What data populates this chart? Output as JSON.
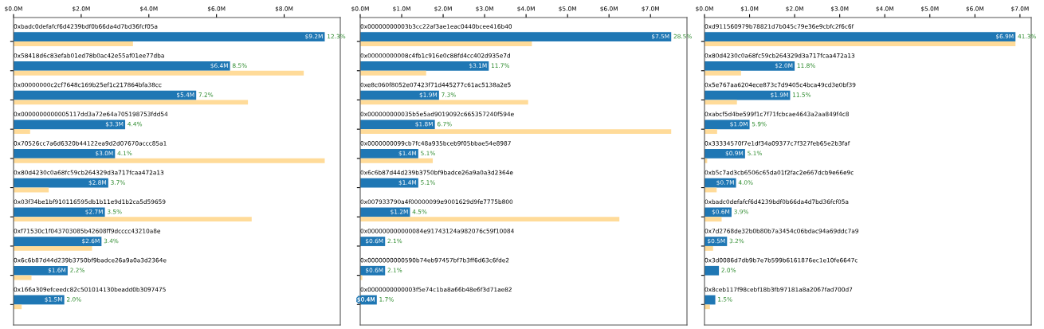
{
  "chart_data": [
    {
      "type": "bar",
      "orientation": "horizontal",
      "categories": [
        "0xbadc0defafcf6d4239bdf0b66da4d7bd36fcf05a",
        "0x58418d6c83efab01ed78b0ac42e55af01ee77dba",
        "0x00000000c2cf7648c169b25ef1c217864bfa38cc",
        "0x0000000000005117dd3a72e64a705198753fdd54",
        "0x70526cc7a6d6320b44122ea9d2d07670accc85a1",
        "0x80d4230c0a68fc59cb264329d3a717fcaa472a13",
        "0x03f34be1bf910116595db1b11e9d1b2ca5d59659",
        "0xf71530c1f043703085b42608ff9dcccc43210a8e",
        "0x6c6b87d44d239b3750bf9badce26a9a0a3d2364e",
        "0x166a309efceedc82c501014130beadd0b3097475"
      ],
      "series": [
        {
          "color": "#1f77b4",
          "values": [
            9.2,
            6.4,
            5.4,
            3.3,
            3.0,
            2.8,
            2.7,
            2.6,
            1.6,
            1.5
          ],
          "value_labels": [
            "$9.2M",
            "$6.4M",
            "$5.4M",
            "$3.3M",
            "$3.0M",
            "$2.8M",
            "$2.7M",
            "$2.6M",
            "$1.6M",
            "$1.5M"
          ]
        },
        {
          "color": "#ffdb99",
          "values": [
            3.53,
            8.58,
            6.93,
            0.49,
            9.2,
            1.04,
            7.04,
            2.32,
            0.53,
            0.24
          ]
        }
      ],
      "xlim": [
        0,
        9.66
      ],
      "xticks": [
        {
          "value": 0,
          "label": "$0.0M"
        },
        {
          "value": 2,
          "label": "$2.0M"
        },
        {
          "value": 4,
          "label": "$4.0M"
        },
        {
          "value": 6,
          "label": "$6.0M"
        },
        {
          "value": 8,
          "label": "$8.0M"
        }
      ],
      "annotations": [
        {
          "text": "12.3%",
          "x": 9.2,
          "y": "0xbadc0defafcf6d4239bdf0b66da4d7bd36fcf05a"
        },
        {
          "text": "8.5%",
          "x": 6.4,
          "y": "0x58418d6c83efab01ed78b0ac42e55af01ee77dba"
        },
        {
          "text": "7.2%",
          "x": 5.4,
          "y": "0x00000000c2cf7648c169b25ef1c217864bfa38cc"
        },
        {
          "text": "4.4%",
          "x": 3.3,
          "y": "0x0000000000005117dd3a72e64a705198753fdd54"
        },
        {
          "text": "4.1%",
          "x": 3.0,
          "y": "0x70526cc7a6d6320b44122ea9d2d07670accc85a1"
        },
        {
          "text": "3.7%",
          "x": 2.8,
          "y": "0x80d4230c0a68fc59cb264329d3a717fcaa472a13"
        },
        {
          "text": "3.5%",
          "x": 2.7,
          "y": "0x03f34be1bf910116595db1b11e9d1b2ca5d59659"
        },
        {
          "text": "3.4%",
          "x": 2.6,
          "y": "0xf71530c1f043703085b42608ff9dcccc43210a8e"
        },
        {
          "text": "2.2%",
          "x": 1.6,
          "y": "0x6c6b87d44d239b3750bf9badce26a9a0a3d2364e"
        },
        {
          "text": "2.0%",
          "x": 1.5,
          "y": "0x166a309efceedc82c501014130beadd0b3097475"
        }
      ]
    },
    {
      "type": "bar",
      "orientation": "horizontal",
      "categories": [
        "0x00000000003b3cc22af3ae1eac0440bcee416b40",
        "0x00000000008c4fb1c916e0c88fd4cc402d935e7d",
        "0xe8c060f8052e07423f71d445277c61ac5138a2e5",
        "0x000000000035b5e5ad9019092c665357240f594e",
        "0x0000000099cb7fc48a935bceb9f05bbae54e8987",
        "0x6c6b87d44d239b3750bf9badce26a9a0a3d2364e",
        "0x007933790a4f00000099e9001629d9fe7775b800",
        "0x000000000000084e91743124a982076c59f10084",
        "0x0000000000590b74eb97457bf7b3ff6d63c6fde2",
        "0x0000000000003f5e74c1ba8a66b48e6f3d71ae82"
      ],
      "series": [
        {
          "color": "#1f77b4",
          "values": [
            7.5,
            3.1,
            1.9,
            1.8,
            1.4,
            1.4,
            1.2,
            0.6,
            0.6,
            0.4
          ],
          "value_labels": [
            "$7.5M",
            "$3.1M",
            "$1.9M",
            "$1.8M",
            "$1.4M",
            "$1.4M",
            "$1.2M",
            "$0.6M",
            "$0.6M",
            "$0.4M"
          ]
        },
        {
          "color": "#ffdb99",
          "values": [
            4.14,
            1.59,
            4.05,
            7.5,
            1.75,
            null,
            6.25,
            null,
            0.05,
            null
          ]
        }
      ],
      "xlim": [
        0,
        7.88
      ],
      "xticks": [
        {
          "value": 0,
          "label": "$0.0M"
        },
        {
          "value": 1,
          "label": "$1.0M"
        },
        {
          "value": 2,
          "label": "$2.0M"
        },
        {
          "value": 3,
          "label": "$3.0M"
        },
        {
          "value": 4,
          "label": "$4.0M"
        },
        {
          "value": 5,
          "label": "$5.0M"
        },
        {
          "value": 6,
          "label": "$6.0M"
        },
        {
          "value": 7,
          "label": "$7.0M"
        }
      ],
      "annotations": [
        {
          "text": "28.5%",
          "x": 7.5,
          "y": "0x00000000003b3cc22af3ae1eac0440bcee416b40"
        },
        {
          "text": "11.7%",
          "x": 3.1,
          "y": "0x00000000008c4fb1c916e0c88fd4cc402d935e7d"
        },
        {
          "text": "7.3%",
          "x": 1.9,
          "y": "0xe8c060f8052e07423f71d445277c61ac5138a2e5"
        },
        {
          "text": "6.7%",
          "x": 1.8,
          "y": "0x000000000035b5e5ad9019092c665357240f594e"
        },
        {
          "text": "5.1%",
          "x": 1.4,
          "y": "0x0000000099cb7fc48a935bceb9f05bbae54e8987"
        },
        {
          "text": "5.1%",
          "x": 1.4,
          "y": "0x6c6b87d44d239b3750bf9badce26a9a0a3d2364e"
        },
        {
          "text": "4.5%",
          "x": 1.2,
          "y": "0x007933790a4f00000099e9001629d9fe7775b800"
        },
        {
          "text": "2.1%",
          "x": 0.6,
          "y": "0x000000000000084e91743124a982076c59f10084"
        },
        {
          "text": "2.1%",
          "x": 0.6,
          "y": "0x0000000000590b74eb97457bf7b3ff6d63c6fde2"
        },
        {
          "text": "1.7%",
          "x": 0.4,
          "y": "0x0000000000003f5e74c1ba8a66b48e6f3d71ae82"
        }
      ]
    },
    {
      "type": "bar",
      "orientation": "horizontal",
      "categories": [
        "0xd911560979b78821d7b045c79e36e9cbfc2f6c6f",
        "0x80d4230c0a68fc59cb264329d3a717fcaa472a13",
        "0x5e767aa6204ece873c7d9405c4bca49cd3e0bf39",
        "0xabcf5d4be599f1c7f71fcbcae4643a2aa849f4c8",
        "0x33334570f7e1df34a09377c7f327feb65e2b3faf",
        "0xb5c7ad3cb6506c65da01f2fac2e667dcb9e66e9c",
        "0xbadc0defafcf6d4239bdf0b66da4d7bd36fcf05a",
        "0x7d2768de32b0b80b7a3454c06bdac94a69ddc7a9",
        "0x3d0086d7db9b7e7b599b6161876ec1e10fe6647c",
        "0x8ceb117f98cebf18b3fb97181a8a2067fad700d7"
      ],
      "series": [
        {
          "color": "#1f77b4",
          "values": [
            6.9,
            2.0,
            1.9,
            1.0,
            0.9,
            0.7,
            0.6,
            0.5,
            0.32,
            0.24
          ],
          "value_labels": [
            "$6.9M",
            "$2.0M",
            "$1.9M",
            "$1.0M",
            "$0.9M",
            "$0.7M",
            "$0.6M",
            "$0.5M",
            null,
            null
          ]
        },
        {
          "color": "#ffdb99",
          "values": [
            6.9,
            0.81,
            0.72,
            0.28,
            0.06,
            0.27,
            0.38,
            0.19,
            null,
            0.12
          ]
        }
      ],
      "xlim": [
        0,
        7.25
      ],
      "xticks": [
        {
          "value": 0,
          "label": "$0.0M"
        },
        {
          "value": 1,
          "label": "$1.0M"
        },
        {
          "value": 2,
          "label": "$2.0M"
        },
        {
          "value": 3,
          "label": "$3.0M"
        },
        {
          "value": 4,
          "label": "$4.0M"
        },
        {
          "value": 5,
          "label": "$5.0M"
        },
        {
          "value": 6,
          "label": "$6.0M"
        },
        {
          "value": 7,
          "label": "$7.0M"
        }
      ],
      "annotations": [
        {
          "text": "41.3%",
          "x": 6.9,
          "y": "0xd911560979b78821d7b045c79e36e9cbfc2f6c6f"
        },
        {
          "text": "11.8%",
          "x": 2.0,
          "y": "0x80d4230c0a68fc59cb264329d3a717fcaa472a13"
        },
        {
          "text": "11.5%",
          "x": 1.9,
          "y": "0x5e767aa6204ece873c7d9405c4bca49cd3e0bf39"
        },
        {
          "text": "5.9%",
          "x": 1.0,
          "y": "0xabcf5d4be599f1c7f71fcbcae4643a2aa849f4c8"
        },
        {
          "text": "5.1%",
          "x": 0.9,
          "y": "0x33334570f7e1df34a09377c7f327feb65e2b3faf"
        },
        {
          "text": "4.0%",
          "x": 0.7,
          "y": "0xb5c7ad3cb6506c65da01f2fac2e667dcb9e66e9c"
        },
        {
          "text": "3.9%",
          "x": 0.6,
          "y": "0xbadc0defafcf6d4239bdf0b66da4d7bd36fcf05a"
        },
        {
          "text": "3.2%",
          "x": 0.5,
          "y": "0x7d2768de32b0b80b7a3454c06bdac94a69ddc7a9"
        },
        {
          "text": "2.0%",
          "x": 0.32,
          "y": "0x3d0086d7db9b7e7b599b6161876ec1e10fe6647c"
        },
        {
          "text": "1.5%",
          "x": 0.24,
          "y": "0x8ceb117f98cebf18b3fb97181a8a2067fad700d7"
        }
      ]
    }
  ]
}
